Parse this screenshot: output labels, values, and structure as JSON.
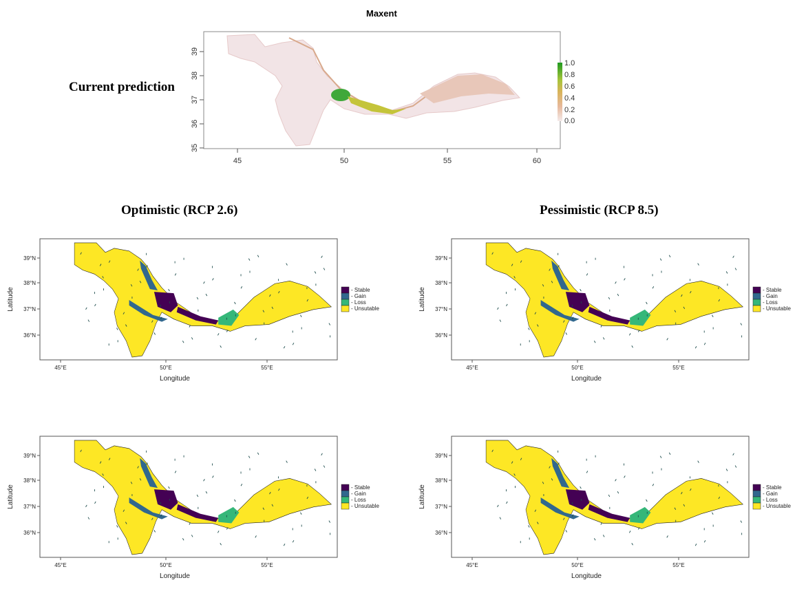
{
  "current": {
    "row_label": "Current prediction",
    "title": "Maxent",
    "x_ticks": [
      "45",
      "50",
      "55",
      "60"
    ],
    "y_ticks": [
      "35",
      "36",
      "37",
      "38",
      "39"
    ],
    "legend_ticks": [
      "1.0",
      "0.8",
      "0.6",
      "0.4",
      "0.2",
      "0.0"
    ]
  },
  "scenarios": {
    "optimistic_label": "Optimistic (RCP 2.6)",
    "pessimistic_label": "Pessimistic (RCP 8.5)"
  },
  "class_map": {
    "x_ticks": [
      "45°E",
      "50°E",
      "55°E"
    ],
    "y_ticks": [
      "39°N",
      "38°N",
      "37°N",
      "36°N"
    ],
    "xlabel": "Longitude",
    "ylabel": "Latitude",
    "legend": [
      {
        "label": "Stable",
        "color": "#440154"
      },
      {
        "label": "Gain",
        "color": "#31688e"
      },
      {
        "label": "Loss",
        "color": "#35b779"
      },
      {
        "label": "Unsutable",
        "color": "#fde725"
      }
    ]
  },
  "colors": {
    "unsuitable": "#fde725",
    "stable": "#440154",
    "gain": "#31688e",
    "loss": "#35b779"
  }
}
